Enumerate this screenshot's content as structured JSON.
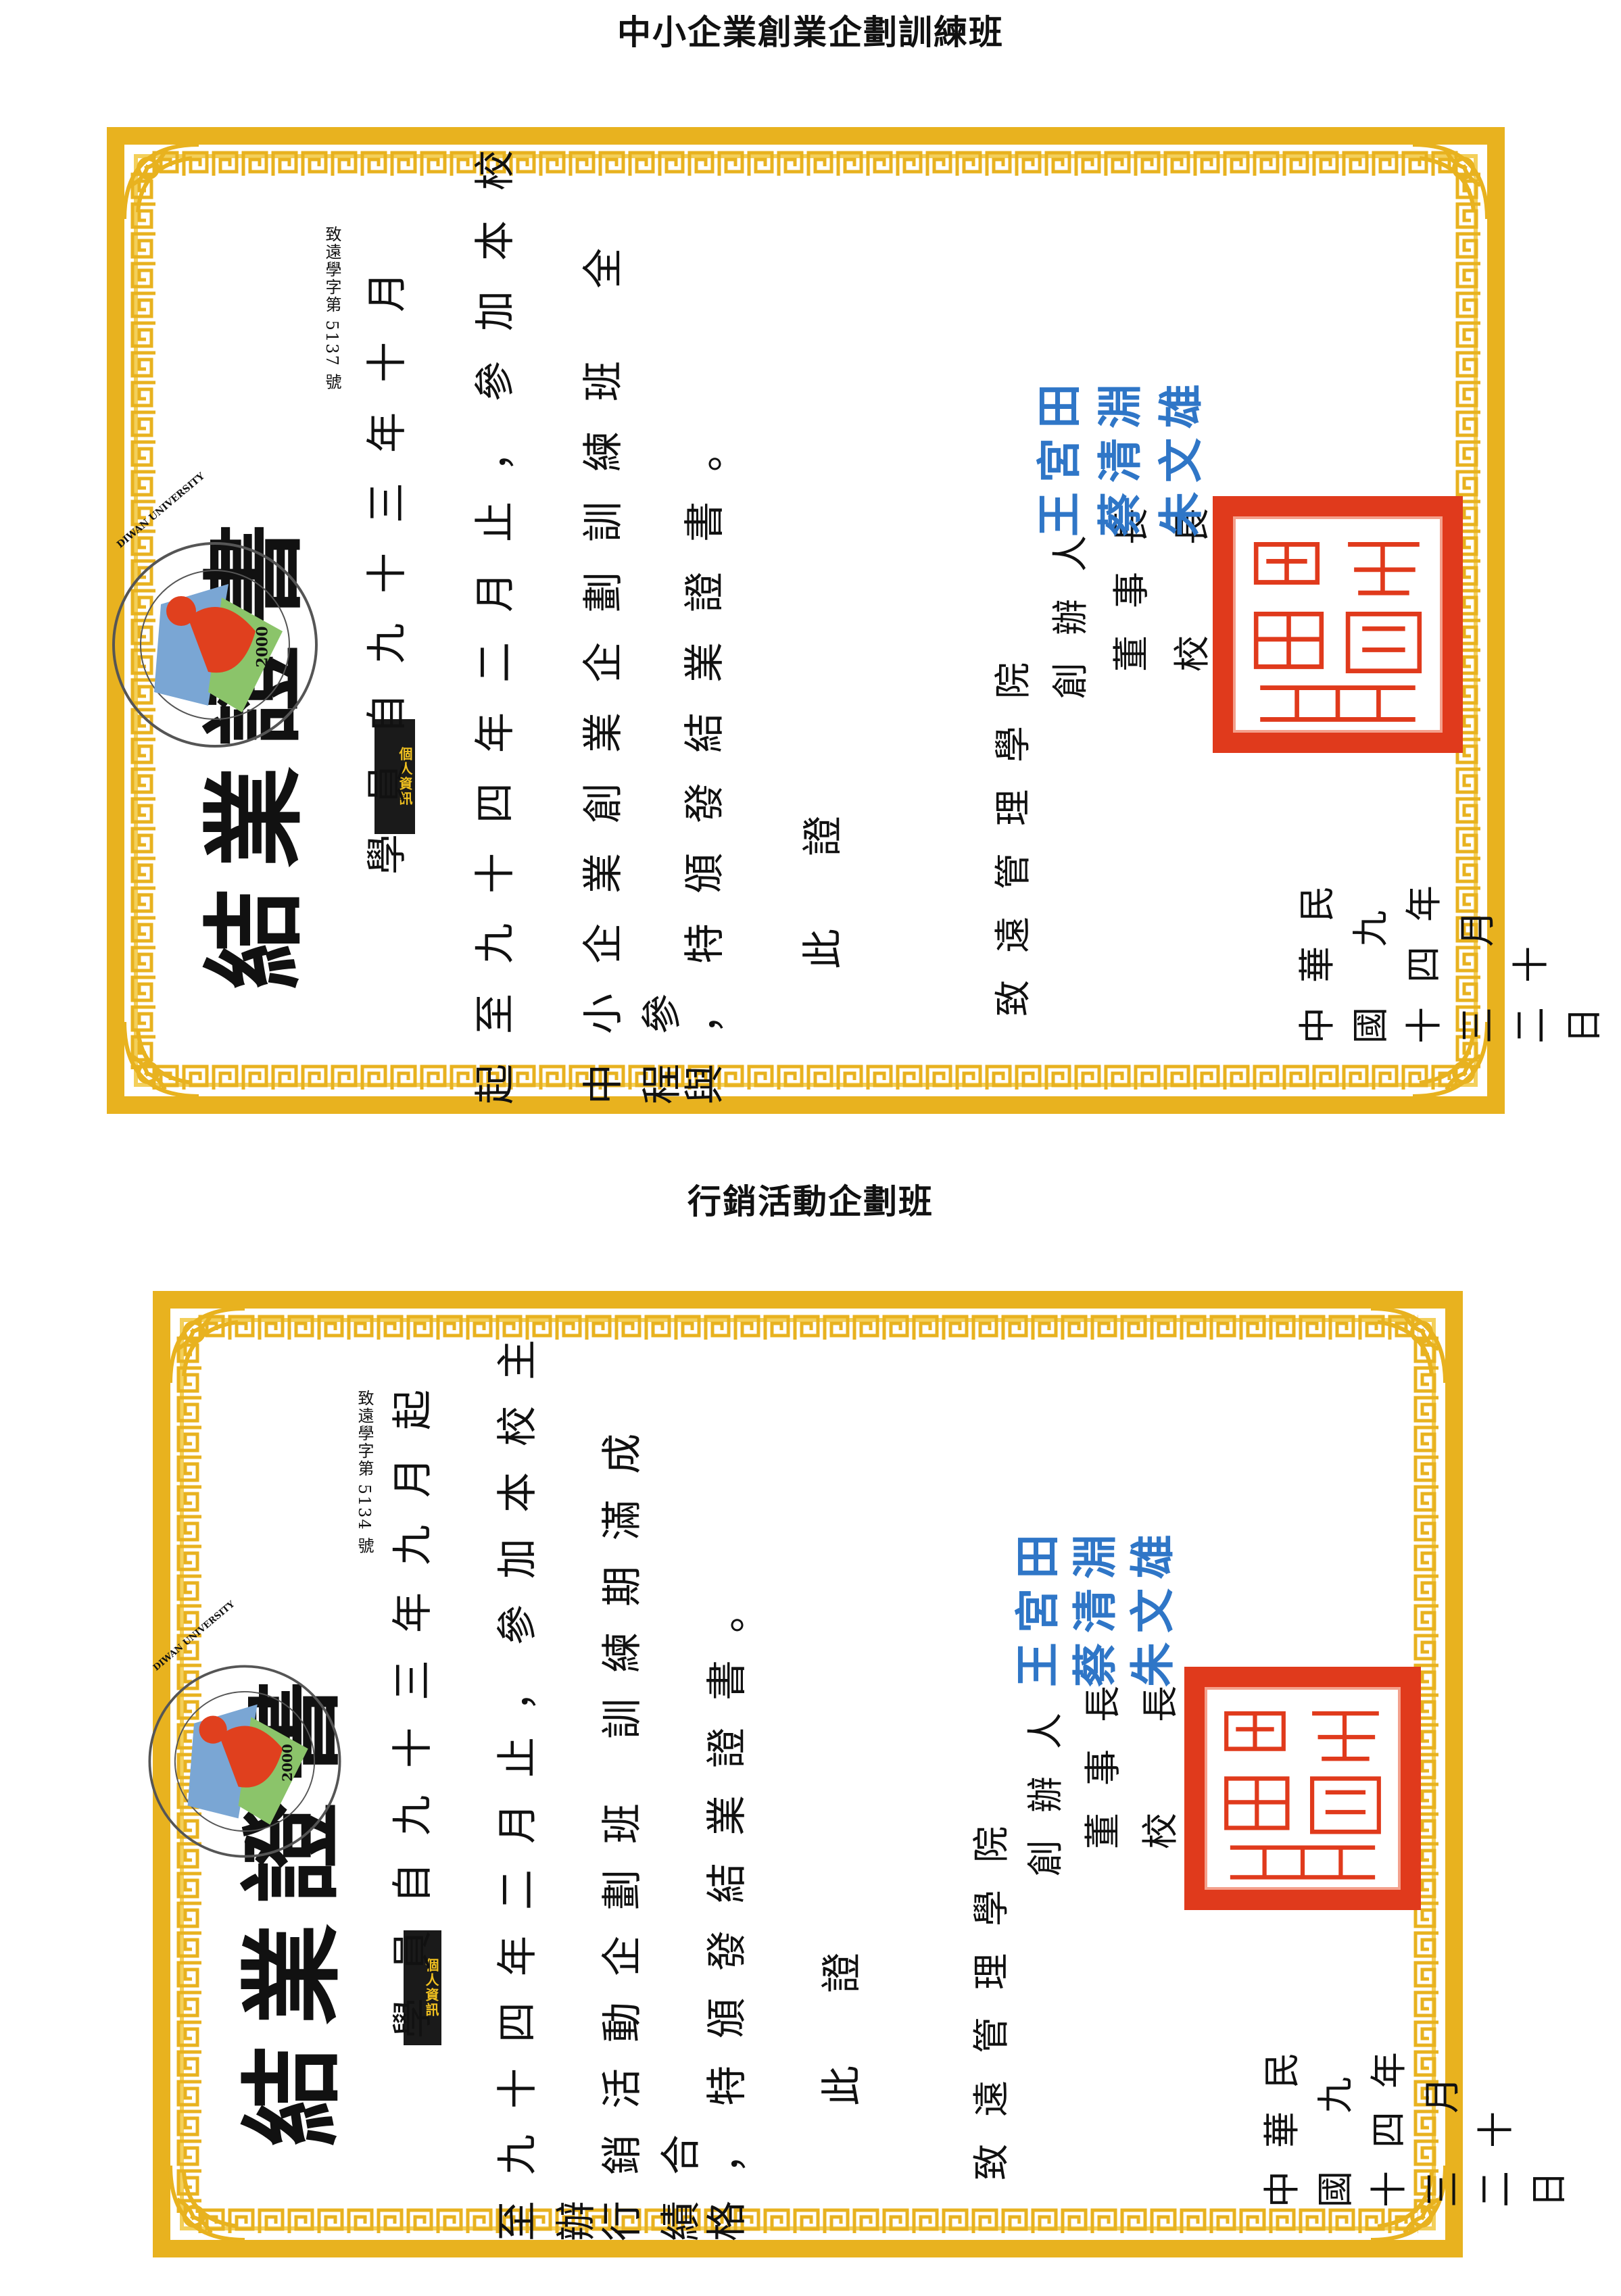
{
  "section_titles": [
    "中小企業創業企劃訓練班",
    "行銷活動企劃班"
  ],
  "logo": {
    "ring_text": "DIWAN UNIVERSITY",
    "year": "2000"
  },
  "cert1": {
    "title": "結業證書",
    "cert_no": "致遠學字第 5137 號",
    "badge": "個人資訊",
    "lines": [
      "學員自九十三年十月",
      "起至九十四年二月止，參加本校",
      "中小企業創業企劃訓練班 全程參",
      "與，特頒發結業證書。",
      "此 證"
    ],
    "school": "致遠管理學院",
    "signers": [
      {
        "role": "創辦人",
        "name": "王宮田"
      },
      {
        "role": "董事長",
        "name": "蔡清淵"
      },
      {
        "role": "校　長",
        "name": "朱文雄"
      }
    ],
    "date": "中華民國 九十四年三 月 二十 日"
  },
  "cert2": {
    "title": "結業證書",
    "cert_no": "致遠學字第 5134 號",
    "badge": "個人資訊",
    "lines": [
      "學員自九十三年九月起",
      "至九十四年二月止，參加本校主辦",
      "行銷活動企劃班 訓練期滿成績合",
      "格，特頒發結業證書。",
      "此 證"
    ],
    "school": "致遠管理學院",
    "signers": [
      {
        "role": "創辦人",
        "name": "王宮田"
      },
      {
        "role": "董事長",
        "name": "蔡清淵"
      },
      {
        "role": "校　長",
        "name": "朱文雄"
      }
    ],
    "date": "中華民國 九十四年三 月 二十 日"
  },
  "colors": {
    "border": "#e8b21f",
    "seal": "#e03a1c",
    "signature": "#2f76c7"
  }
}
